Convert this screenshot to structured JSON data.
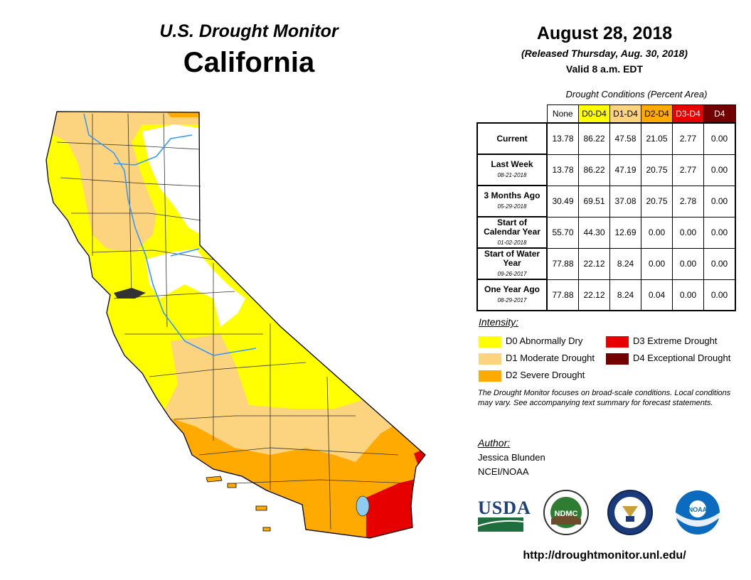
{
  "header": {
    "title": "U.S. Drought Monitor",
    "state": "California",
    "date": "August 28, 2018",
    "released": "(Released Thursday, Aug. 30, 2018)",
    "valid": "Valid 8 a.m. EDT"
  },
  "table": {
    "caption": "Drought Conditions (Percent Area)",
    "columns": [
      {
        "label": "None",
        "color": "#ffffff",
        "text_color": "#000000"
      },
      {
        "label": "D0-D4",
        "color": "#ffff00",
        "text_color": "#000000"
      },
      {
        "label": "D1-D4",
        "color": "#fcd37f",
        "text_color": "#000000"
      },
      {
        "label": "D2-D4",
        "color": "#ffaa00",
        "text_color": "#000000"
      },
      {
        "label": "D3-D4",
        "color": "#e60000",
        "text_color": "#ffffff"
      },
      {
        "label": "D4",
        "color": "#730000",
        "text_color": "#ffffff"
      }
    ],
    "rows": [
      {
        "label": "Current",
        "date": "",
        "values": [
          "13.78",
          "86.22",
          "47.58",
          "21.05",
          "2.77",
          "0.00"
        ]
      },
      {
        "label": "Last Week",
        "date": "08-21-2018",
        "values": [
          "13.78",
          "86.22",
          "47.19",
          "20.75",
          "2.77",
          "0.00"
        ]
      },
      {
        "label": "3 Months Ago",
        "date": "05-29-2018",
        "values": [
          "30.49",
          "69.51",
          "37.08",
          "20.75",
          "2.78",
          "0.00"
        ]
      },
      {
        "label": "Start of Calendar Year",
        "date": "01-02-2018",
        "values": [
          "55.70",
          "44.30",
          "12.69",
          "0.00",
          "0.00",
          "0.00"
        ]
      },
      {
        "label": "Start of Water Year",
        "date": "09-26-2017",
        "values": [
          "77.88",
          "22.12",
          "8.24",
          "0.00",
          "0.00",
          "0.00"
        ]
      },
      {
        "label": "One Year Ago",
        "date": "08-29-2017",
        "values": [
          "77.88",
          "22.12",
          "8.24",
          "0.04",
          "0.00",
          "0.00"
        ]
      }
    ]
  },
  "legend": {
    "title": "Intensity:",
    "items": [
      {
        "label": "D0 Abnormally Dry",
        "color": "#ffff00"
      },
      {
        "label": "D1 Moderate Drought",
        "color": "#fcd37f"
      },
      {
        "label": "D2 Severe Drought",
        "color": "#ffaa00"
      },
      {
        "label": "D3 Extreme Drought",
        "color": "#e60000"
      },
      {
        "label": "D4 Exceptional Drought",
        "color": "#730000"
      }
    ]
  },
  "note": "The Drought Monitor focuses on broad-scale conditions. Local conditions may vary. See accompanying text summary for forecast statements.",
  "author": {
    "title": "Author:",
    "name": "Jessica Blunden",
    "org": "NCEI/NOAA"
  },
  "logos": {
    "usda": "USDA",
    "ndmc": "NDMC",
    "noaa": "NOAA"
  },
  "url": "http://droughtmonitor.unl.edu/"
}
